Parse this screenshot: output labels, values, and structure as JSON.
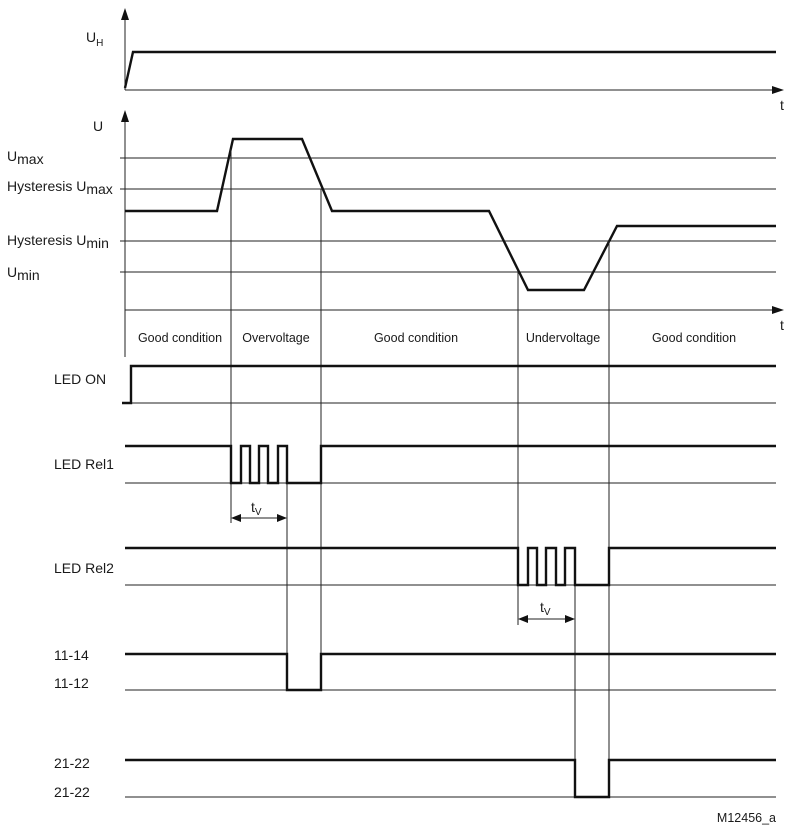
{
  "axes": {
    "uh_label": "U",
    "uh_sub": "H",
    "u_label": "U",
    "t_label": "t"
  },
  "levels": {
    "umax_main": "U",
    "umax_sub": "max",
    "hyst_max_main": "Hysteresis U",
    "hyst_max_sub": "max",
    "hyst_min_main": "Hysteresis U",
    "hyst_min_sub": "min",
    "umin_main": "U",
    "umin_sub": "min"
  },
  "segments": [
    "Good condition",
    "Overvoltage",
    "Good condition",
    "Undervoltage",
    "Good condition"
  ],
  "signals": {
    "led_on": "LED ON",
    "led_rel1": "LED Rel1",
    "led_rel2": "LED Rel2",
    "contact1_top": "11-14",
    "contact1_bottom": "11-12",
    "contact2_top": "21-22",
    "contact2_bottom": "21-22"
  },
  "delay": {
    "main": "t",
    "sub": "V"
  },
  "figure_id": "M12456_a",
  "colors": {
    "background": "#ececec",
    "panel": "#ffffff",
    "ink": "#111111"
  }
}
